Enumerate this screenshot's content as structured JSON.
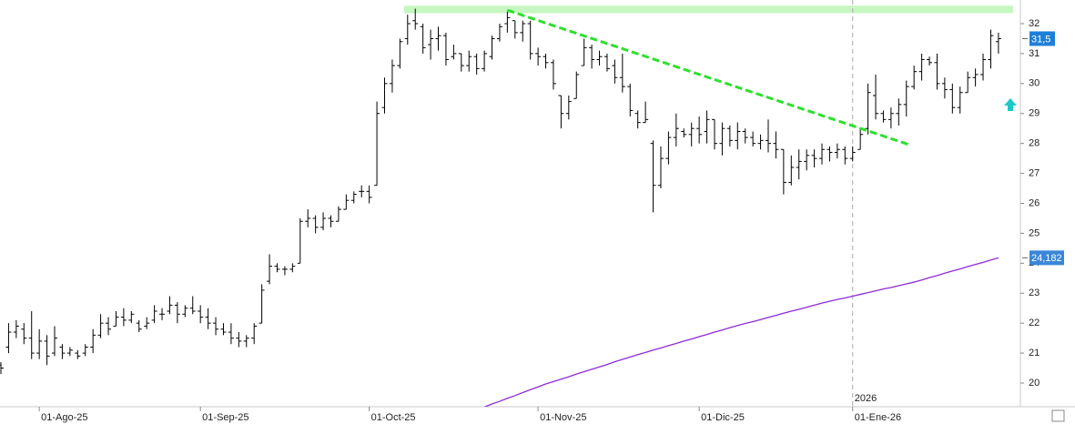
{
  "chart_data": {
    "type": "ohlc",
    "bar_color": "#000000",
    "categories": [
      null,
      null,
      null,
      null,
      null,
      "01-Ago-25",
      null,
      null,
      null,
      null,
      null,
      null,
      null,
      null,
      null,
      null,
      null,
      null,
      null,
      null,
      null,
      null,
      null,
      null,
      null,
      null,
      "01-Sep-25",
      null,
      null,
      null,
      null,
      null,
      null,
      null,
      null,
      null,
      null,
      null,
      null,
      null,
      null,
      null,
      null,
      null,
      null,
      null,
      null,
      null,
      "01-Oct-25",
      null,
      null,
      null,
      null,
      null,
      null,
      null,
      null,
      null,
      null,
      null,
      null,
      null,
      null,
      null,
      null,
      null,
      null,
      null,
      null,
      null,
      "01-Nov-25",
      null,
      null,
      null,
      null,
      null,
      null,
      null,
      null,
      null,
      null,
      null,
      null,
      null,
      null,
      null,
      null,
      null,
      null,
      null,
      null,
      "01-Dic-25",
      null,
      null,
      null,
      null,
      null,
      null,
      null,
      null,
      null,
      null,
      null,
      null,
      null,
      null,
      null,
      null,
      null,
      null,
      null,
      "01-Ene-26",
      null,
      null,
      null,
      null,
      null,
      null,
      null,
      null,
      null,
      null,
      null,
      null,
      null,
      null,
      null,
      null,
      null,
      null,
      null
    ],
    "year_label": "2026",
    "open": [
      20.6,
      21.2,
      21.7,
      21.8,
      21.5,
      21.0,
      21.4,
      21.0,
      21.2,
      21.0,
      21.0,
      21.0,
      21.2,
      21.6,
      22.0,
      21.9,
      22.2,
      22.1,
      22.0,
      21.9,
      22.1,
      22.3,
      22.4,
      22.6,
      22.3,
      22.5,
      22.4,
      22.2,
      22.0,
      21.8,
      21.7,
      21.5,
      21.4,
      21.5,
      22.0,
      23.4,
      23.9,
      23.8,
      23.8,
      24.0,
      25.4,
      25.5,
      25.2,
      25.5,
      25.4,
      25.8,
      26.1,
      26.4,
      26.4,
      26.6,
      29.2,
      30.0,
      30.6,
      31.5,
      32.1,
      31.9,
      31.3,
      31.5,
      31.6,
      30.9,
      31.0,
      30.6,
      30.9,
      30.5,
      30.9,
      31.5,
      32.0,
      32.1,
      31.7,
      32.0,
      31.0,
      30.9,
      30.7,
      29.6,
      29.0,
      29.5,
      30.6,
      31.2,
      30.8,
      30.9,
      30.6,
      30.2,
      29.9,
      29.0,
      28.7,
      28.0,
      26.6,
      27.5,
      28.2,
      28.4,
      28.3,
      28.5,
      28.4,
      28.8,
      28.0,
      28.5,
      28.1,
      28.4,
      28.2,
      28.0,
      28.1,
      28.0,
      27.8,
      26.7,
      27.2,
      27.4,
      27.6,
      27.5,
      27.8,
      27.7,
      27.8,
      27.5,
      27.8,
      28.5,
      29.6,
      29.0,
      28.8,
      29.0,
      29.3,
      29.9,
      30.4,
      30.8,
      30.7,
      30.0,
      29.8,
      29.2,
      29.7,
      30.2,
      30.3,
      30.8,
      31.4
    ],
    "high": [
      20.7,
      22.0,
      22.1,
      22.0,
      22.4,
      21.8,
      21.6,
      21.9,
      21.3,
      21.2,
      21.1,
      21.3,
      21.8,
      22.3,
      22.2,
      22.4,
      22.5,
      22.4,
      22.1,
      22.2,
      22.6,
      22.5,
      22.9,
      22.7,
      22.6,
      22.9,
      22.6,
      22.5,
      22.2,
      22.0,
      22.0,
      21.7,
      21.6,
      22.0,
      23.3,
      24.3,
      24.0,
      23.9,
      24.0,
      25.5,
      25.8,
      25.6,
      25.7,
      25.6,
      25.9,
      26.3,
      26.4,
      26.6,
      26.6,
      29.4,
      30.2,
      30.8,
      31.5,
      32.3,
      32.5,
      32.0,
      31.8,
      31.9,
      31.7,
      31.3,
      31.0,
      31.1,
      31.0,
      31.1,
      31.6,
      32.0,
      32.4,
      32.1,
      32.1,
      32.1,
      31.2,
      31.0,
      30.8,
      29.6,
      29.6,
      30.4,
      31.5,
      31.3,
      31.1,
      31.0,
      30.8,
      31.0,
      30.0,
      29.1,
      29.4,
      28.1,
      27.9,
      28.4,
      29.0,
      28.5,
      28.7,
      28.9,
      29.1,
      28.8,
      28.7,
      28.6,
      28.7,
      28.5,
      28.4,
      28.3,
      28.8,
      28.4,
      27.8,
      27.6,
      27.8,
      27.8,
      27.8,
      28.0,
      27.9,
      28.0,
      27.9,
      27.9,
      28.5,
      30.0,
      30.3,
      29.1,
      29.2,
      29.5,
      30.1,
      30.6,
      31.0,
      30.9,
      31.0,
      30.2,
      30.0,
      29.9,
      30.4,
      30.5,
      31.0,
      31.8,
      31.7
    ],
    "low": [
      20.3,
      21.0,
      21.5,
      21.3,
      20.8,
      20.8,
      20.6,
      20.9,
      20.8,
      20.9,
      20.8,
      20.9,
      21.0,
      21.5,
      21.6,
      21.9,
      21.9,
      22.0,
      21.7,
      21.8,
      22.0,
      22.1,
      22.3,
      22.0,
      22.2,
      22.3,
      22.0,
      21.8,
      21.6,
      21.6,
      21.3,
      21.2,
      21.2,
      21.3,
      22.0,
      23.3,
      23.7,
      23.6,
      23.7,
      24.0,
      25.2,
      25.0,
      25.1,
      25.2,
      25.4,
      25.8,
      26.0,
      26.2,
      26.0,
      26.6,
      29.0,
      29.7,
      30.5,
      31.3,
      31.8,
      31.0,
      30.8,
      31.1,
      30.6,
      30.8,
      30.4,
      30.4,
      30.3,
      30.4,
      30.8,
      31.4,
      31.7,
      31.5,
      31.4,
      30.8,
      30.6,
      30.5,
      29.8,
      28.5,
      28.8,
      29.5,
      30.6,
      30.5,
      30.6,
      30.4,
      30.0,
      29.7,
      28.9,
      28.5,
      28.7,
      25.7,
      26.5,
      27.3,
      27.9,
      28.2,
      27.9,
      28.0,
      28.0,
      27.8,
      27.6,
      27.9,
      27.8,
      28.0,
      27.9,
      27.8,
      27.7,
      27.5,
      26.3,
      26.6,
      26.8,
      27.1,
      27.2,
      27.3,
      27.4,
      27.5,
      27.3,
      27.4,
      27.8,
      28.3,
      28.8,
      28.7,
      28.5,
      28.6,
      28.9,
      29.8,
      30.1,
      30.6,
      29.8,
      29.5,
      29.0,
      29.0,
      29.7,
      29.9,
      30.1,
      30.5,
      31.0
    ],
    "close": [
      20.5,
      21.7,
      21.9,
      21.5,
      21.0,
      21.4,
      20.9,
      21.5,
      21.0,
      21.1,
      20.9,
      21.2,
      21.6,
      22.0,
      21.8,
      22.2,
      22.1,
      22.3,
      21.8,
      22.0,
      22.4,
      22.3,
      22.6,
      22.3,
      22.5,
      22.4,
      22.2,
      22.0,
      21.8,
      21.7,
      21.5,
      21.4,
      21.5,
      21.9,
      23.1,
      23.9,
      23.8,
      23.8,
      23.9,
      25.4,
      25.5,
      25.2,
      25.5,
      25.4,
      25.8,
      26.1,
      26.3,
      26.4,
      26.2,
      29.0,
      30.0,
      30.6,
      31.4,
      32.0,
      32.0,
      31.2,
      31.5,
      31.6,
      30.8,
      31.0,
      30.6,
      30.9,
      30.5,
      31.0,
      31.5,
      31.9,
      32.2,
      31.7,
      32.0,
      31.0,
      30.9,
      30.7,
      30.0,
      29.0,
      29.4,
      30.3,
      31.2,
      30.8,
      30.9,
      30.5,
      30.2,
      29.9,
      29.1,
      28.7,
      28.8,
      26.6,
      27.5,
      28.2,
      28.5,
      28.3,
      28.5,
      28.3,
      28.8,
      28.0,
      28.5,
      28.1,
      28.4,
      28.2,
      28.0,
      28.1,
      28.0,
      27.8,
      26.7,
      27.2,
      27.4,
      27.6,
      27.5,
      27.8,
      27.7,
      27.8,
      27.5,
      27.7,
      28.3,
      29.7,
      29.0,
      28.8,
      29.0,
      29.3,
      29.9,
      30.4,
      30.8,
      30.7,
      30.0,
      29.8,
      29.2,
      29.7,
      30.2,
      30.3,
      30.8,
      31.6,
      31.5
    ],
    "ma": {
      "color": "#8f2bd6",
      "values": [
        null,
        null,
        null,
        null,
        null,
        null,
        null,
        null,
        null,
        null,
        null,
        null,
        null,
        null,
        null,
        null,
        null,
        null,
        null,
        null,
        null,
        null,
        null,
        null,
        null,
        null,
        null,
        null,
        null,
        null,
        null,
        null,
        null,
        null,
        null,
        null,
        null,
        null,
        null,
        null,
        null,
        null,
        null,
        null,
        null,
        null,
        null,
        null,
        null,
        null,
        null,
        null,
        null,
        null,
        null,
        null,
        null,
        null,
        null,
        null,
        null,
        null,
        null,
        19.2,
        19.3,
        19.39,
        19.49,
        19.58,
        19.68,
        19.78,
        19.87,
        19.97,
        20.05,
        20.13,
        20.21,
        20.3,
        20.38,
        20.46,
        20.54,
        20.62,
        20.71,
        20.79,
        20.87,
        20.95,
        21.02,
        21.1,
        21.17,
        21.25,
        21.32,
        21.4,
        21.47,
        21.55,
        21.62,
        21.7,
        21.77,
        21.85,
        21.92,
        21.99,
        22.05,
        22.12,
        22.19,
        22.26,
        22.33,
        22.4,
        22.46,
        22.53,
        22.6,
        22.67,
        22.73,
        22.79,
        22.84,
        22.9,
        22.96,
        23.02,
        23.08,
        23.14,
        23.19,
        23.25,
        23.31,
        23.37,
        23.44,
        23.52,
        23.59,
        23.67,
        23.74,
        23.81,
        23.89,
        23.96,
        24.03,
        24.11,
        24.182
      ]
    },
    "last_price": {
      "value": 31.5,
      "label": "31,5",
      "color": "#1e7fd8"
    },
    "ma_label": {
      "value": 24.182,
      "label": "24,182",
      "color": "#3a86d9"
    },
    "resistance": {
      "low": 32.35,
      "high": 32.6,
      "color": "#c6f7c0"
    },
    "trendline": {
      "start": 32.45,
      "end": 27.95,
      "color": "#2ee02e"
    },
    "ylim": [
      19.21,
      32.79
    ],
    "yticks": [
      20,
      21,
      22,
      23,
      24,
      25,
      26,
      27,
      28,
      29,
      30,
      31,
      32
    ]
  }
}
